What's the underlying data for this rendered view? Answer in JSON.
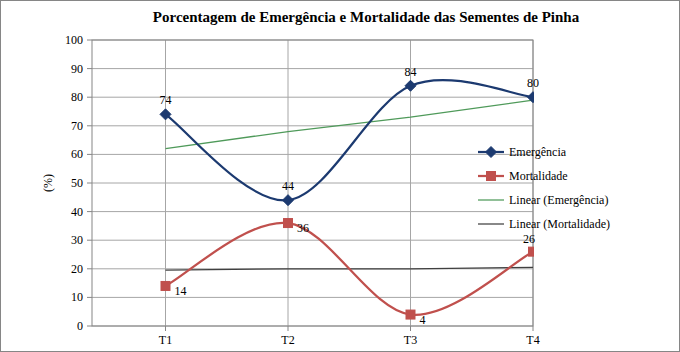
{
  "chart_data": {
    "type": "line",
    "title": "Porcentagem de Emergência  e Mortalidade das Sementes de Pinha",
    "y_label": "(%)",
    "categories": [
      "T1",
      "T2",
      "T3",
      "T4"
    ],
    "series": [
      {
        "name": "Emergência",
        "color": "#1c3a70",
        "marker": "diamond",
        "line_style": "smooth",
        "data_labels": true,
        "values": [
          74,
          44,
          84,
          80
        ]
      },
      {
        "name": "Mortalidade",
        "color": "#c0504d",
        "marker": "square",
        "line_style": "smooth",
        "data_labels": true,
        "values": [
          14,
          36,
          4,
          26
        ]
      },
      {
        "name": "Linear (Emergência)",
        "color": "#4f9a5a",
        "marker": "none",
        "line_style": "solid",
        "data_labels": false,
        "values": [
          62,
          68,
          73,
          79
        ]
      },
      {
        "name": "Linear (Mortalidade)",
        "color": "#404040",
        "marker": "none",
        "line_style": "solid",
        "data_labels": false,
        "values": [
          19.5,
          20,
          20,
          20.5
        ]
      }
    ],
    "ylim": [
      0,
      100
    ],
    "yticks": [
      0,
      10,
      20,
      30,
      40,
      50,
      60,
      70,
      80,
      90,
      100
    ],
    "grid": true,
    "legend": "right"
  }
}
